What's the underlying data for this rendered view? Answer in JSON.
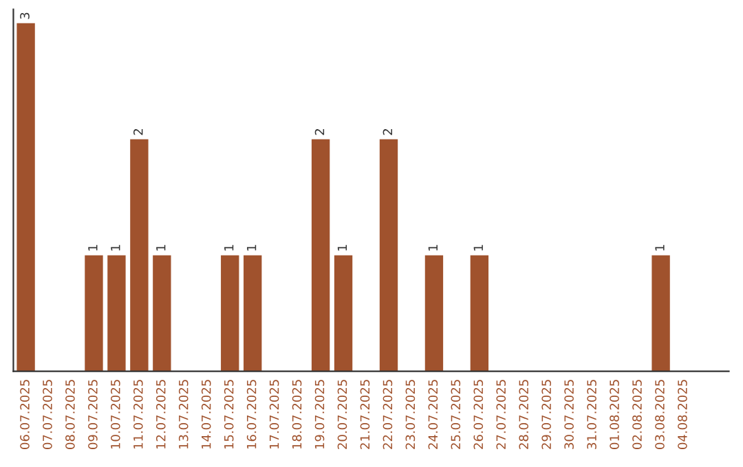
{
  "chart_data": {
    "type": "bar",
    "categories": [
      "06.07.2025",
      "07.07.2025",
      "08.07.2025",
      "09.07.2025",
      "10.07.2025",
      "11.07.2025",
      "12.07.2025",
      "13.07.2025",
      "14.07.2025",
      "15.07.2025",
      "16.07.2025",
      "17.07.2025",
      "18.07.2025",
      "19.07.2025",
      "20.07.2025",
      "21.07.2025",
      "22.07.2025",
      "23.07.2025",
      "24.07.2025",
      "25.07.2025",
      "26.07.2025",
      "27.07.2025",
      "28.07.2025",
      "29.07.2025",
      "30.07.2025",
      "31.07.2025",
      "01.08.2025",
      "02.08.2025",
      "03.08.2025",
      "04.08.2025"
    ],
    "values": [
      3,
      0,
      0,
      1,
      1,
      2,
      1,
      0,
      0,
      1,
      1,
      0,
      0,
      2,
      1,
      0,
      2,
      0,
      1,
      0,
      1,
      0,
      0,
      0,
      0,
      0,
      0,
      0,
      1,
      0
    ],
    "color": "#a0522d",
    "value_labels": [
      "3",
      null,
      null,
      "1",
      "1",
      "2",
      "1",
      null,
      null,
      "1",
      "1",
      null,
      null,
      "2",
      "1",
      null,
      "2",
      null,
      "1",
      null,
      "1",
      null,
      null,
      null,
      null,
      null,
      null,
      null,
      "1",
      null
    ],
    "grid": false,
    "legend": false
  }
}
